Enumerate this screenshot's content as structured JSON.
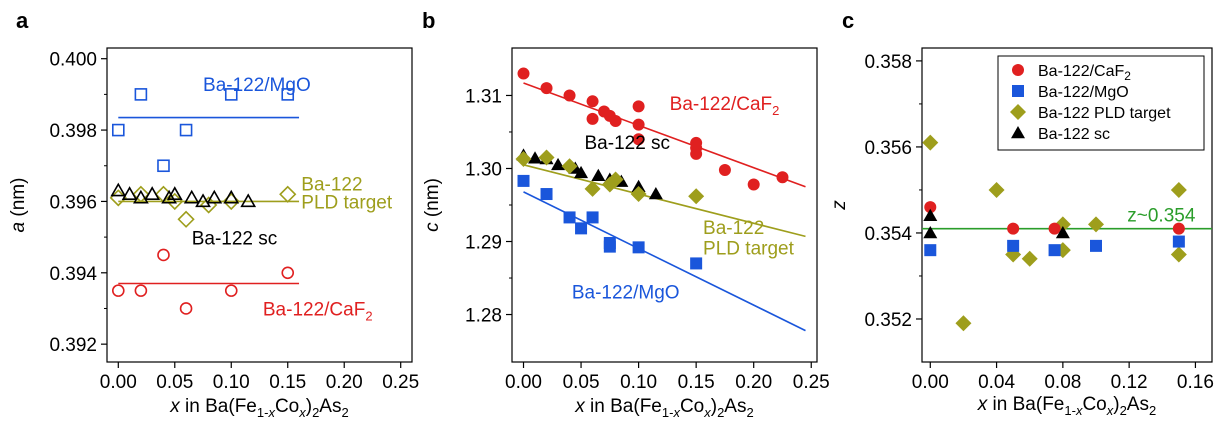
{
  "chart_data": [
    {
      "type": "scatter",
      "panel": "a",
      "xlabel": {
        "pre": "",
        "var": "x",
        "mid": " in Ba(Fe",
        "sub1": "1-",
        "subvar": "x",
        "mid2": "Co",
        "subvar2": "x",
        "post": ")",
        "sub2": "2",
        "tail": "As",
        "sub3": "2"
      },
      "ylabel": {
        "var": "a",
        "rest": " (nm)"
      },
      "xlim": [
        -0.01,
        0.26
      ],
      "ylim": [
        0.3915,
        0.4003
      ],
      "xticks": [
        0.0,
        0.05,
        0.1,
        0.15,
        0.2,
        0.25
      ],
      "xtick_labels": [
        "0.00",
        "0.05",
        "0.10",
        "0.15",
        "0.20",
        "0.25"
      ],
      "yticks": [
        0.392,
        0.394,
        0.396,
        0.398,
        0.4
      ],
      "ytick_labels": [
        "0.392",
        "0.394",
        "0.396",
        "0.398",
        "0.400"
      ],
      "series": [
        {
          "name": "Ba-122/MgO",
          "color": "#1a56db",
          "marker": "square-open",
          "x": [
            0.0,
            0.02,
            0.04,
            0.06,
            0.1,
            0.15
          ],
          "y": [
            0.398,
            0.399,
            0.397,
            0.398,
            0.399,
            0.399
          ],
          "fit": {
            "x": [
              0.0,
              0.16
            ],
            "y": [
              0.39835,
              0.39835
            ]
          }
        },
        {
          "name": "Ba-122 PLD target",
          "color": "#9e9e1c",
          "marker": "diamond-open",
          "x": [
            0.0,
            0.02,
            0.04,
            0.05,
            0.06,
            0.08,
            0.1,
            0.15
          ],
          "y": [
            0.3961,
            0.3962,
            0.3962,
            0.396,
            0.3955,
            0.3959,
            0.396,
            0.3962
          ],
          "fit": {
            "x": [
              0.0,
              0.16
            ],
            "y": [
              0.396,
              0.396
            ]
          }
        },
        {
          "name": "Ba-122 sc",
          "color": "#000000",
          "marker": "triangle-open",
          "x": [
            0.0,
            0.01,
            0.02,
            0.03,
            0.045,
            0.05,
            0.065,
            0.075,
            0.085,
            0.1,
            0.115
          ],
          "y": [
            0.3963,
            0.3962,
            0.3961,
            0.3962,
            0.3961,
            0.3962,
            0.3961,
            0.396,
            0.3961,
            0.3961,
            0.396
          ]
        },
        {
          "name": "Ba-122/CaF2",
          "color": "#e02020",
          "marker": "circle-open",
          "x": [
            0.0,
            0.02,
            0.04,
            0.06,
            0.1,
            0.15
          ],
          "y": [
            0.3935,
            0.3935,
            0.3945,
            0.393,
            0.3935,
            0.394
          ],
          "fit": {
            "x": [
              0.0,
              0.16
            ],
            "y": [
              0.3937,
              0.3937
            ]
          }
        }
      ],
      "annotations": [
        {
          "text": "Ba-122/MgO",
          "color": "#1a56db",
          "x": 0.075,
          "y": 0.3991
        },
        {
          "text": "Ba-122",
          "color": "#9e9e1c",
          "x": 0.162,
          "y": 0.3963
        },
        {
          "text": "PLD target",
          "color": "#9e9e1c",
          "x": 0.162,
          "y": 0.3958
        },
        {
          "text": "Ba-122 sc",
          "color": "#000000",
          "x": 0.065,
          "y": 0.3948
        },
        {
          "text": "Ba-122/CaF",
          "sub": "2",
          "color": "#e02020",
          "x": 0.128,
          "y": 0.3928
        }
      ]
    },
    {
      "type": "scatter",
      "panel": "b",
      "xlabel": {
        "pre": "",
        "var": "x",
        "mid": " in Ba(Fe",
        "sub1": "1-",
        "subvar": "x",
        "mid2": "Co",
        "subvar2": "x",
        "post": ")",
        "sub2": "2",
        "tail": "As",
        "sub3": "2"
      },
      "ylabel": {
        "var": "c",
        "rest": " (nm)"
      },
      "xlim": [
        -0.01,
        0.255
      ],
      "ylim": [
        1.2735,
        1.3165
      ],
      "xticks": [
        0.0,
        0.05,
        0.1,
        0.15,
        0.2,
        0.25
      ],
      "xtick_labels": [
        "0.00",
        "0.05",
        "0.10",
        "0.15",
        "0.20",
        "0.25"
      ],
      "yticks": [
        1.28,
        1.29,
        1.3,
        1.31
      ],
      "ytick_labels": [
        "1.28",
        "1.29",
        "1.30",
        "1.31"
      ],
      "series": [
        {
          "name": "Ba-122/CaF2",
          "color": "#e02020",
          "marker": "circle-filled",
          "x": [
            0.0,
            0.02,
            0.04,
            0.06,
            0.06,
            0.07,
            0.075,
            0.08,
            0.1,
            0.1,
            0.1,
            0.15,
            0.15,
            0.15,
            0.175,
            0.2,
            0.225
          ],
          "y": [
            1.313,
            1.311,
            1.31,
            1.3092,
            1.3068,
            1.3078,
            1.3072,
            1.3065,
            1.3085,
            1.306,
            1.304,
            1.3035,
            1.3028,
            1.302,
            1.2998,
            1.2978,
            1.2988
          ],
          "fit": {
            "x": [
              0.0,
              0.245
            ],
            "y": [
              1.3117,
              1.2975
            ]
          }
        },
        {
          "name": "Ba-122 sc",
          "color": "#000000",
          "marker": "triangle-filled",
          "x": [
            0.0,
            0.01,
            0.02,
            0.03,
            0.045,
            0.05,
            0.065,
            0.075,
            0.085,
            0.1,
            0.115
          ],
          "y": [
            1.3018,
            1.3014,
            1.3013,
            1.3005,
            1.3,
            1.2994,
            1.299,
            1.2985,
            1.2982,
            1.2975,
            1.2965
          ]
        },
        {
          "name": "Ba-122 PLD target",
          "color": "#9e9e1c",
          "marker": "diamond-filled",
          "x": [
            0.0,
            0.02,
            0.04,
            0.06,
            0.075,
            0.08,
            0.1,
            0.15
          ],
          "y": [
            1.3013,
            1.3015,
            1.3003,
            1.2972,
            1.2978,
            1.2985,
            1.2965,
            1.2962
          ],
          "fit": {
            "x": [
              0.0,
              0.245
            ],
            "y": [
              1.3005,
              1.2907
            ]
          }
        },
        {
          "name": "Ba-122/MgO",
          "color": "#1a56db",
          "marker": "square-filled",
          "x": [
            0.0,
            0.02,
            0.04,
            0.05,
            0.06,
            0.075,
            0.075,
            0.1,
            0.15
          ],
          "y": [
            1.2983,
            1.2965,
            1.2933,
            1.2918,
            1.2933,
            1.2898,
            1.2893,
            1.2892,
            1.287
          ],
          "fit": {
            "x": [
              0.0,
              0.245
            ],
            "y": [
              1.2968,
              1.2778
            ]
          }
        }
      ],
      "annotations": [
        {
          "text": "Ba-122/CaF",
          "sub": "2",
          "color": "#e02020",
          "x": 0.127,
          "y": 1.308
        },
        {
          "text": "Ba-122 sc",
          "color": "#000000",
          "x": 0.053,
          "y": 1.3027
        },
        {
          "text": "Ba-122",
          "color": "#9e9e1c",
          "x": 0.156,
          "y": 1.291
        },
        {
          "text": "PLD target",
          "color": "#9e9e1c",
          "x": 0.156,
          "y": 1.2882
        },
        {
          "text": "Ba-122/MgO",
          "color": "#1a56db",
          "x": 0.042,
          "y": 1.2822
        }
      ]
    },
    {
      "type": "scatter",
      "panel": "c",
      "xlabel": {
        "pre": "",
        "var": "x",
        "mid": " in Ba(Fe",
        "sub1": "1-",
        "subvar": "x",
        "mid2": "Co",
        "subvar2": "x",
        "post": ")",
        "sub2": "2",
        "tail": "As",
        "sub3": "2"
      },
      "ylabel": {
        "var": "z",
        "rest": ""
      },
      "xlim": [
        -0.005,
        0.17
      ],
      "ylim": [
        0.351,
        0.3583
      ],
      "xticks": [
        0.0,
        0.04,
        0.08,
        0.12,
        0.16
      ],
      "xtick_labels": [
        "0.00",
        "0.04",
        "0.08",
        "0.12",
        "0.16"
      ],
      "yticks": [
        0.352,
        0.354,
        0.356,
        0.358
      ],
      "ytick_labels": [
        "0.352",
        "0.354",
        "0.356",
        "0.358"
      ],
      "series": [
        {
          "name": "Ba-122 PLD target",
          "color": "#9e9e1c",
          "marker": "diamond-filled",
          "x": [
            0.0,
            0.02,
            0.04,
            0.05,
            0.06,
            0.08,
            0.08,
            0.1,
            0.15,
            0.15
          ],
          "y": [
            0.3561,
            0.3519,
            0.355,
            0.3535,
            0.3534,
            0.3542,
            0.3536,
            0.3542,
            0.355,
            0.3535
          ]
        },
        {
          "name": "Ba-122/MgO",
          "color": "#1a56db",
          "marker": "square-filled",
          "x": [
            0.0,
            0.05,
            0.075,
            0.1,
            0.15
          ],
          "y": [
            0.3536,
            0.3537,
            0.3536,
            0.3537,
            0.3538
          ]
        },
        {
          "name": "Ba-122/CaF2",
          "color": "#e02020",
          "marker": "circle-filled",
          "x": [
            0.0,
            0.05,
            0.075,
            0.15
          ],
          "y": [
            0.3546,
            0.3541,
            0.3541,
            0.3541
          ]
        },
        {
          "name": "Ba-122 sc",
          "color": "#000000",
          "marker": "triangle-filled",
          "x": [
            0.0,
            0.0,
            0.08
          ],
          "y": [
            0.3544,
            0.354,
            0.354
          ]
        }
      ],
      "reference_line": {
        "y": 0.3541,
        "color": "#2a9d2a",
        "label": "z~0.354"
      },
      "legend": {
        "placement": "top-right",
        "entries": [
          {
            "text": "Ba-122/CaF",
            "sub": "2",
            "color": "#e02020",
            "marker": "circle-filled"
          },
          {
            "text": "Ba-122/MgO",
            "sub": "",
            "color": "#1a56db",
            "marker": "square-filled"
          },
          {
            "text": "Ba-122 PLD target",
            "sub": "",
            "color": "#9e9e1c",
            "marker": "diamond-filled"
          },
          {
            "text": "Ba-122 sc",
            "sub": "",
            "color": "#000000",
            "marker": "triangle-filled"
          }
        ]
      }
    }
  ]
}
